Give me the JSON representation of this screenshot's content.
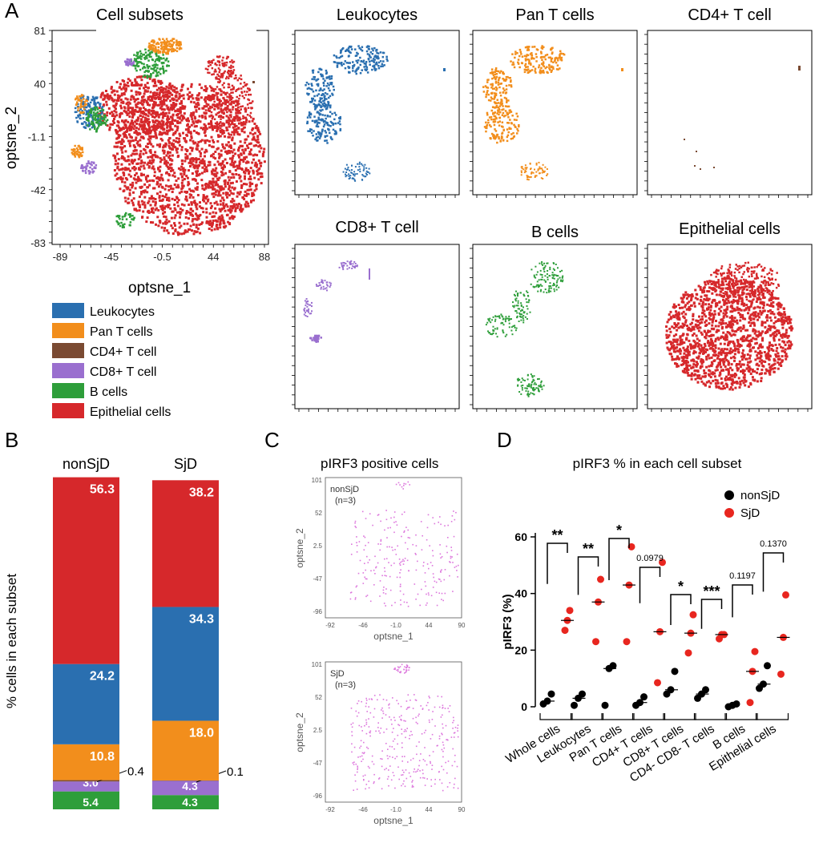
{
  "panels": {
    "a": "A",
    "b": "B",
    "c": "C",
    "d": "D"
  },
  "colors": {
    "leukocytes": "#2a6fb0",
    "pan_t": "#f28e1c",
    "cd4": "#7a4a32",
    "cd8": "#9a6fcf",
    "b": "#2e9e3a",
    "epithelial": "#d6282b",
    "pirf3": "#dd77dd",
    "nonsjd_dot": "#000000",
    "sjd_dot": "#e8261f"
  },
  "tsne_main": {
    "title": "Cell subsets",
    "xlabel": "optsne_1",
    "ylabel": "optsne_2",
    "xticks": [
      "-89",
      "-45",
      "-0.5",
      "44",
      "88"
    ],
    "yticks": [
      "81",
      "40",
      "-1.1",
      "-42",
      "-83"
    ]
  },
  "legend": [
    {
      "label": "Leukocytes",
      "key": "leukocytes"
    },
    {
      "label": "Pan T cells",
      "key": "pan_t"
    },
    {
      "label": "CD4+ T cell",
      "key": "cd4"
    },
    {
      "label": "CD8+ T cell",
      "key": "cd8"
    },
    {
      "label": "B cells",
      "key": "b"
    },
    {
      "label": "Epithelial  cells",
      "key": "epithelial"
    }
  ],
  "subplots": [
    {
      "title": "Leukocytes",
      "key": "leukocytes"
    },
    {
      "title": "Pan T cells",
      "key": "pan_t"
    },
    {
      "title": "CD4+ T cell",
      "key": "cd4"
    },
    {
      "title": "CD8+ T cell",
      "key": "cd8"
    },
    {
      "title": "B cells",
      "key": "b"
    },
    {
      "title": "Epithelial cells",
      "key": "epithelial"
    }
  ],
  "panel_c": {
    "title": "pIRF3 positive cells",
    "xlabel": "optsne_1",
    "ylabel": "optsne_2",
    "xticks": [
      "-92",
      "-46",
      "-1.0",
      "44",
      "90"
    ],
    "yticks": [
      "101",
      "52",
      "2.5",
      "-47",
      "-96"
    ],
    "plots": [
      {
        "group": "nonSjD",
        "n": "(n=3)"
      },
      {
        "group": "SjD",
        "n": "(n=3)"
      }
    ]
  },
  "chart_data": [
    {
      "type": "bar",
      "stacked": true,
      "ylabel": "% cells in each subset",
      "ylim": [
        0,
        100
      ],
      "categories": [
        "nonSjD",
        "SjD"
      ],
      "series": [
        {
          "name": "B cells",
          "key": "b",
          "values": [
            5.4,
            4.3
          ],
          "labels": [
            "5.4",
            "4.3"
          ]
        },
        {
          "name": "CD8+ T cell",
          "key": "cd8",
          "values": [
            3.0,
            4.3
          ],
          "labels": [
            "3.0",
            "4.3"
          ]
        },
        {
          "name": "CD4+ T cell",
          "key": "cd4",
          "values": [
            0.4,
            0.1
          ],
          "labels": [
            "0.4",
            "0.1"
          ]
        },
        {
          "name": "Pan T cells",
          "key": "pan_t",
          "values": [
            10.8,
            18.0
          ],
          "labels": [
            "10.8",
            "18.0"
          ]
        },
        {
          "name": "Leukocytes",
          "key": "leukocytes",
          "values": [
            24.2,
            34.3
          ],
          "labels": [
            "24.2",
            "34.3"
          ]
        },
        {
          "name": "Epithelial cells",
          "key": "epithelial",
          "values": [
            56.3,
            38.2
          ],
          "labels": [
            "56.3",
            "38.2"
          ]
        }
      ]
    },
    {
      "type": "scatter",
      "title": "pIRF3 % in each cell subset",
      "ylabel": "pIRF3 (%)",
      "ylim": [
        0,
        60
      ],
      "yticks": [
        "0",
        "20",
        "40",
        "60"
      ],
      "legend": [
        {
          "name": "nonSjD",
          "key": "nonsjd_dot"
        },
        {
          "name": "SjD",
          "key": "sjd_dot"
        }
      ],
      "categories": [
        "Whole cells",
        "Leukocytes",
        "Pan T cells",
        "CD4+ T cells",
        "CD8+ T cells",
        "CD4- CD8- T cells",
        "B cells",
        "Epithelial cells"
      ],
      "nonSjD": [
        [
          1,
          2,
          4.5
        ],
        [
          0.5,
          3,
          4.5
        ],
        [
          0.5,
          13.5,
          14.5
        ],
        [
          0.5,
          1.5,
          3.5
        ],
        [
          4.5,
          6,
          12.5
        ],
        [
          3,
          4.5,
          6
        ],
        [
          0,
          0.5,
          1
        ],
        [
          6.5,
          8,
          14.5
        ]
      ],
      "SjD": [
        [
          27,
          30.5,
          34
        ],
        [
          23,
          37,
          45
        ],
        [
          23,
          43,
          56.5
        ],
        [
          8.5,
          26.5,
          51
        ],
        [
          19,
          26,
          32.5
        ],
        [
          24,
          25.5,
          25.5
        ],
        [
          1.5,
          12.5,
          19.5
        ],
        [
          11.5,
          24.5,
          39.5
        ]
      ],
      "nonSjD_median": [
        2,
        3,
        13.5,
        1.5,
        6,
        4.5,
        0.5,
        8
      ],
      "SjD_median": [
        30.5,
        37,
        43,
        26.5,
        26,
        25.5,
        12.5,
        24.5
      ],
      "significance": [
        "**",
        "**",
        "*",
        "0.0979",
        "*",
        "***",
        "0.1197",
        "0.1370"
      ]
    }
  ]
}
